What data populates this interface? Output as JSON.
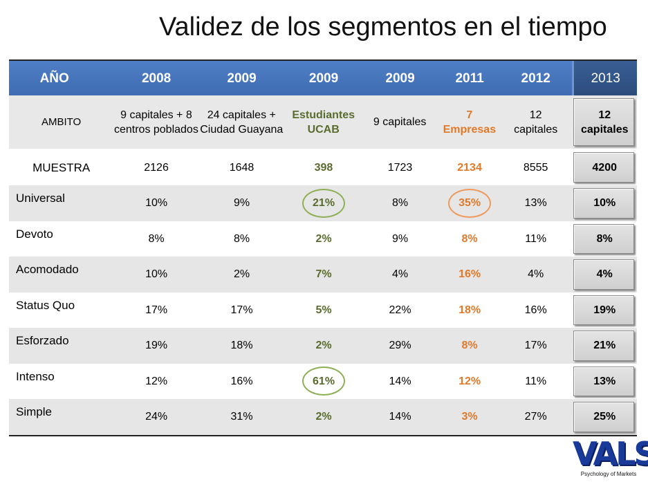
{
  "title": "Validez de los segmentos en el tiempo",
  "header": [
    "AÑO",
    "2008",
    "2009",
    "2009",
    "2009",
    "2011",
    "2012",
    "2013"
  ],
  "ambito": {
    "label": "AMBITO",
    "values": [
      "9 capitales + 8 centros poblados",
      "24 capitales + Ciudad Guayana",
      "Estudiantes UCAB",
      "9 capitales",
      "7 Empresas",
      "12 capitales",
      "12 capitales"
    ]
  },
  "muestra": {
    "label": "MUESTRA",
    "values": [
      "2126",
      "1648",
      "398",
      "1723",
      "2134",
      "8555",
      "4200"
    ]
  },
  "segments": [
    {
      "label": "Universal",
      "values": [
        "10%",
        "9%",
        "21%",
        "8%",
        "35%",
        "13%",
        "10%"
      ]
    },
    {
      "label": "Devoto",
      "values": [
        "8%",
        "8%",
        "2%",
        "9%",
        "8%",
        "11%",
        "8%"
      ]
    },
    {
      "label": "Acomodado",
      "values": [
        "10%",
        "2%",
        "7%",
        "4%",
        "16%",
        "4%",
        "4%"
      ]
    },
    {
      "label": "Status Quo",
      "values": [
        "17%",
        "17%",
        "5%",
        "22%",
        "18%",
        "16%",
        "19%"
      ]
    },
    {
      "label": "Esforzado",
      "values": [
        "19%",
        "18%",
        "2%",
        "29%",
        "8%",
        "17%",
        "21%"
      ]
    },
    {
      "label": "Intenso",
      "values": [
        "12%",
        "16%",
        "61%",
        "14%",
        "12%",
        "11%",
        "13%"
      ]
    },
    {
      "label": "Simple",
      "values": [
        "24%",
        "31%",
        "2%",
        "14%",
        "3%",
        "27%",
        "25%"
      ]
    }
  ],
  "colors": {
    "header": "#4a7abf",
    "green": "#5a6b2e",
    "orange": "#e07a2a"
  },
  "logo": {
    "text": "VALS",
    "subtitle": "Psychology of Markets"
  }
}
